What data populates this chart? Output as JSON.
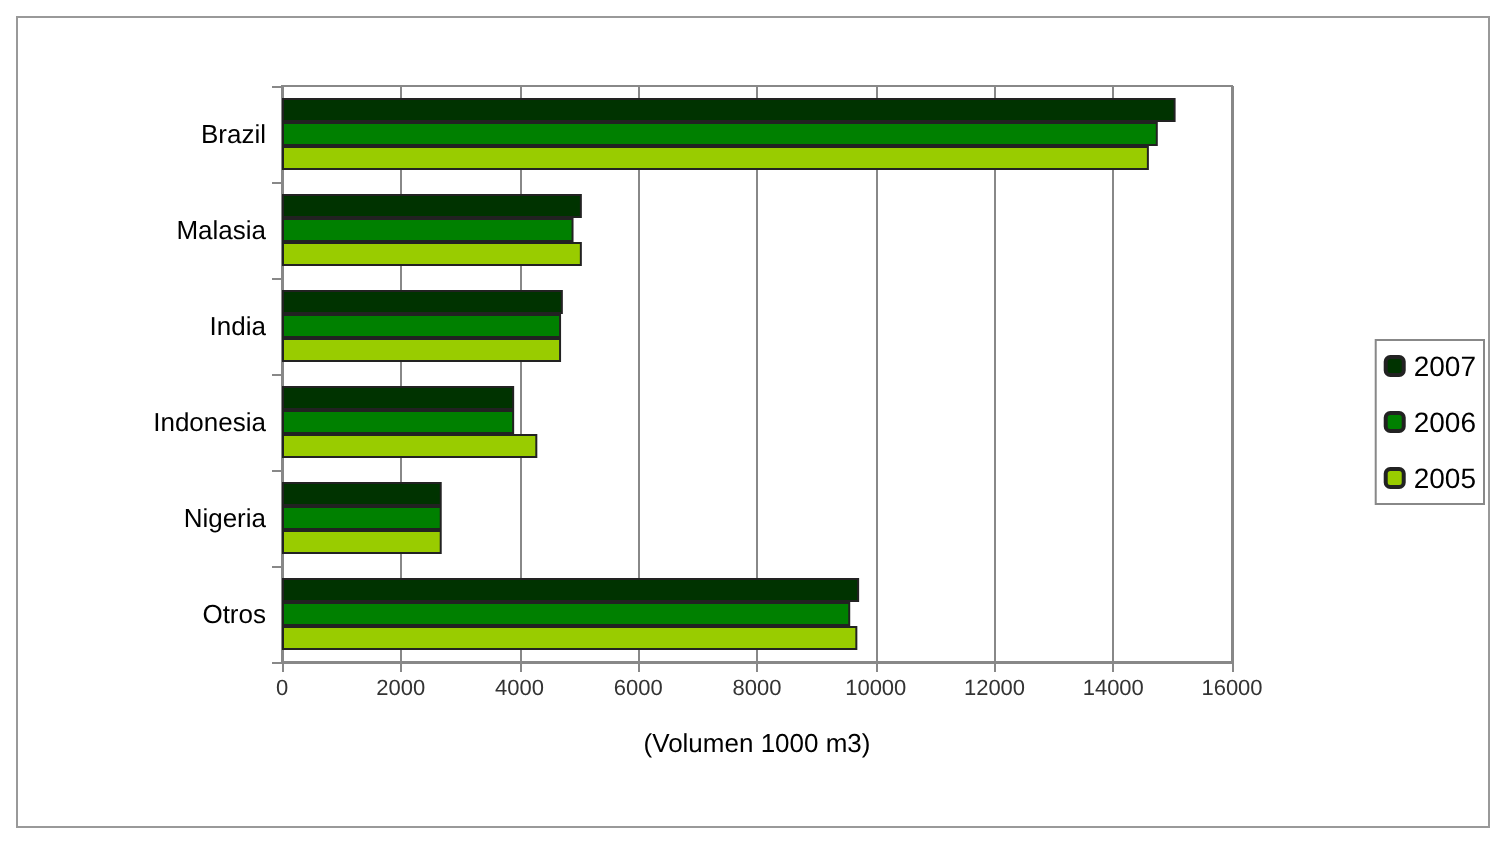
{
  "chart_data": {
    "type": "bar",
    "orientation": "horizontal",
    "xlabel": "(Volumen 1000 m3)",
    "categories": [
      "Brazil",
      "Malasia",
      "India",
      "Indonesia",
      "Nigeria",
      "Otros"
    ],
    "series": [
      {
        "name": "2007",
        "color": "#003300",
        "values": [
          15050,
          5050,
          4730,
          3910,
          2690,
          9720
        ]
      },
      {
        "name": "2006",
        "color": "#008000",
        "values": [
          14750,
          4910,
          4700,
          3910,
          2690,
          9570
        ]
      },
      {
        "name": "2005",
        "color": "#99cc00",
        "values": [
          14600,
          5050,
          4700,
          4300,
          2690,
          9690
        ]
      }
    ],
    "xlim": [
      0,
      16000
    ],
    "xticks": [
      0,
      2000,
      4000,
      6000,
      8000,
      10000,
      12000,
      14000,
      16000
    ],
    "grid": "x",
    "legend": "right"
  }
}
